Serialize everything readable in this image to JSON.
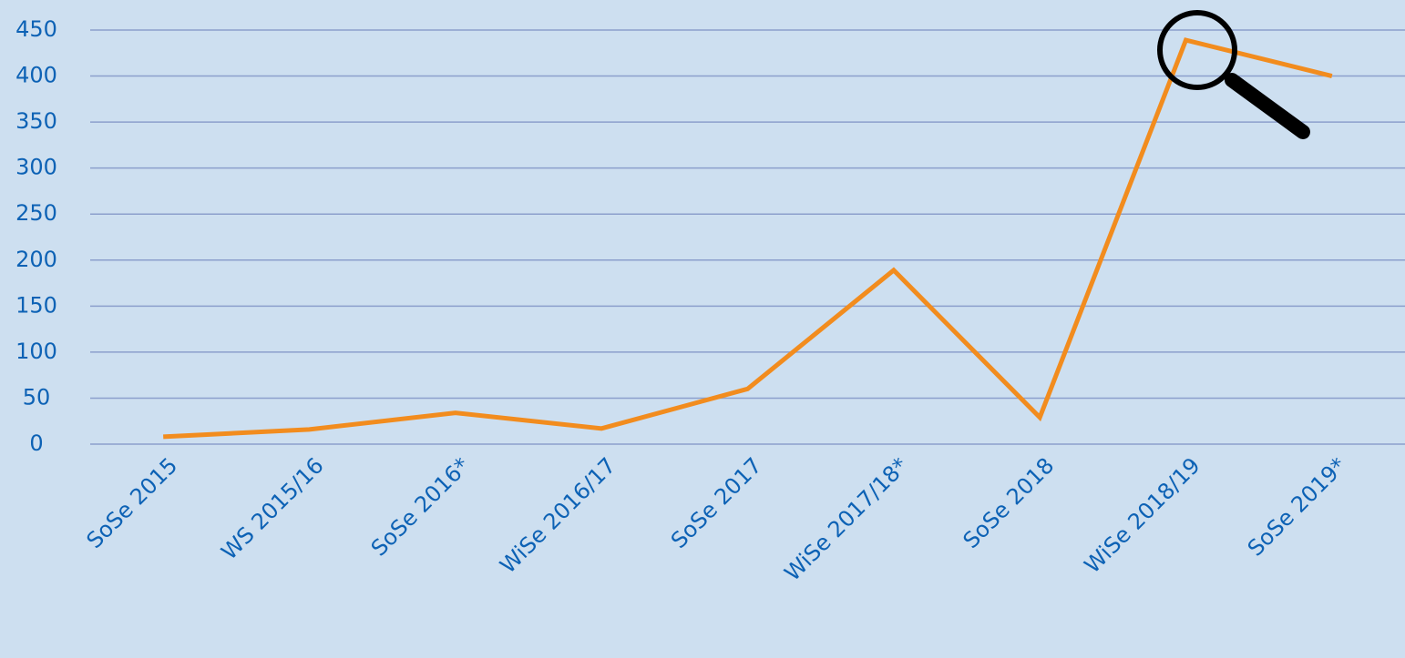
{
  "chart_data": {
    "type": "line",
    "categories": [
      "SoSe 2015",
      "WS 2015/16",
      "SoSe 2016*",
      "WiSe 2016/17",
      "SoSe 2017",
      "WiSe 2017/18*",
      "SoSe 2018",
      "WiSe 2018/19",
      "SoSe 2019*"
    ],
    "series": [
      {
        "color": "#f28c1e",
        "values": [
          8,
          16,
          34,
          17,
          60,
          189,
          29,
          439,
          400
        ]
      }
    ],
    "ylim": [
      0,
      450
    ],
    "yticks": [
      0,
      50,
      100,
      150,
      200,
      250,
      300,
      350,
      400,
      450
    ],
    "grid": true
  }
}
